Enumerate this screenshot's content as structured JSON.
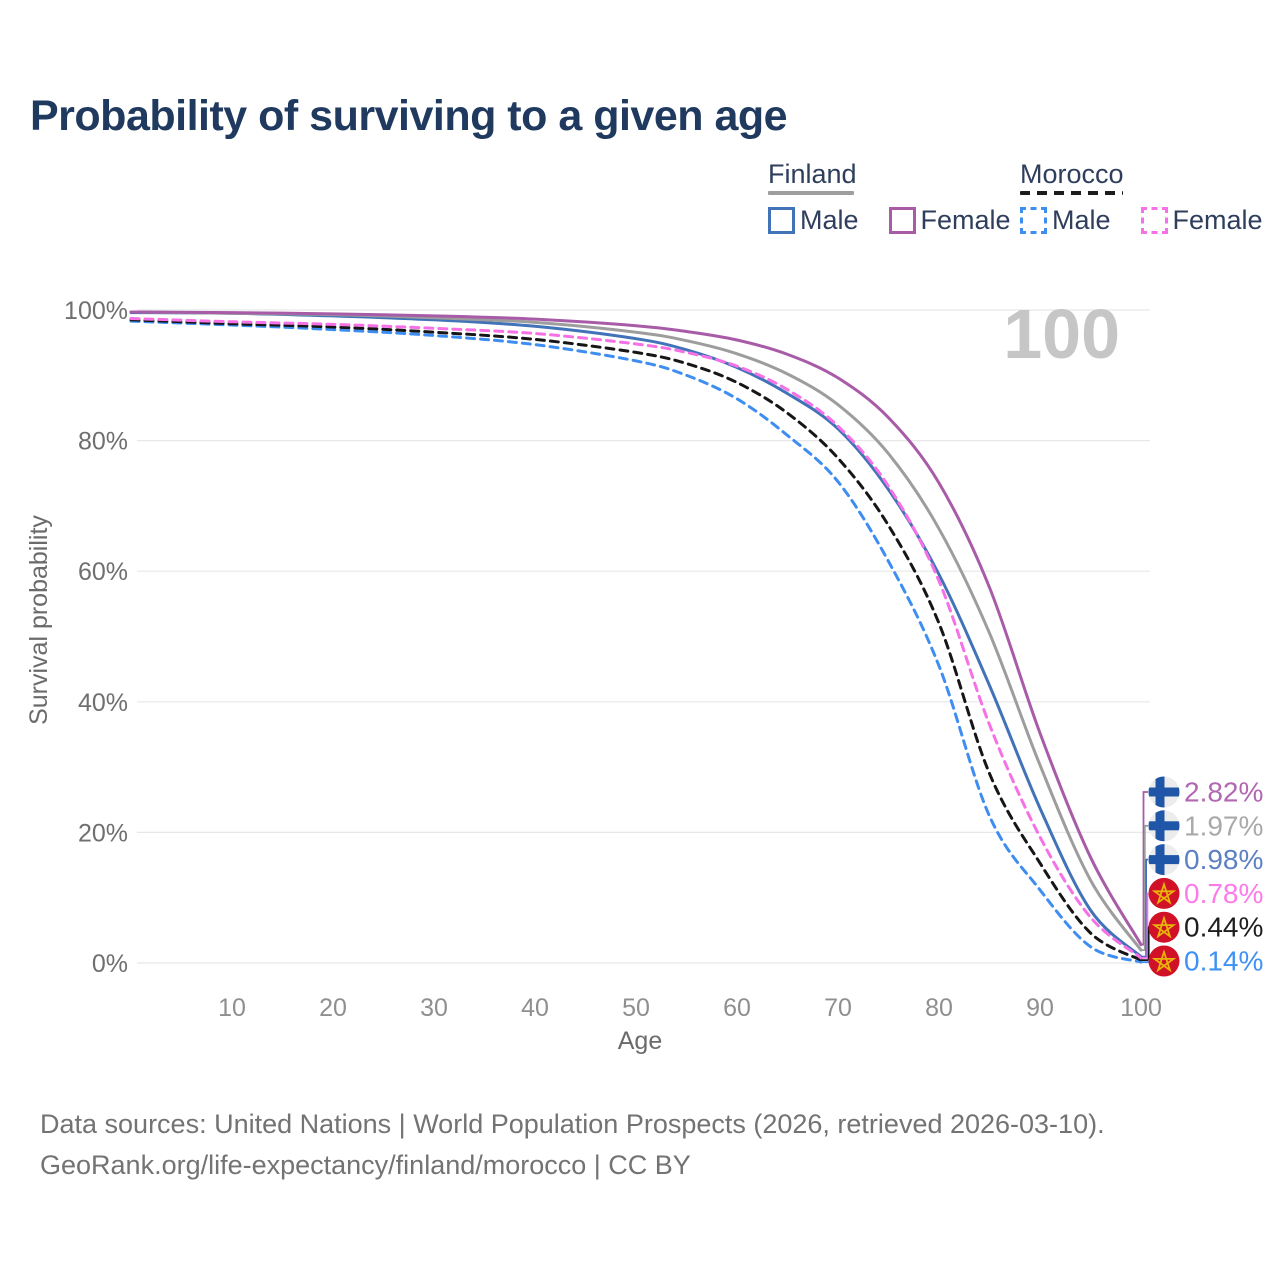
{
  "title": "Probability of surviving to a given age",
  "watermark": "100",
  "legend": {
    "groups": [
      {
        "name": "Finland",
        "style": "solid",
        "underline_color": "#9e9e9e",
        "items": [
          {
            "label": "Male",
            "color": "#4273b9"
          },
          {
            "label": "Female",
            "color": "#a85ca8"
          }
        ]
      },
      {
        "name": "Morocco",
        "style": "dashed",
        "underline_color": "#1c1c1c",
        "items": [
          {
            "label": "Male",
            "color": "#3e8ef2"
          },
          {
            "label": "Female",
            "color": "#f571e5"
          }
        ]
      }
    ]
  },
  "chart_data": {
    "type": "line",
    "title": "Probability of surviving to a given age",
    "xlabel": "Age",
    "ylabel": "Survival probability",
    "xlim": [
      0,
      108
    ],
    "ylim": [
      0,
      100
    ],
    "grid": "horizontal",
    "x_ticks": [
      10,
      20,
      30,
      40,
      50,
      60,
      70,
      80,
      90,
      100
    ],
    "y_tick_values": [
      0,
      20,
      40,
      60,
      80,
      100
    ],
    "y_tick_labels": [
      "0%",
      "20%",
      "40%",
      "60%",
      "80%",
      "100%"
    ],
    "x": [
      0,
      10,
      20,
      30,
      40,
      50,
      55,
      60,
      65,
      70,
      75,
      80,
      85,
      90,
      95,
      100
    ],
    "series": [
      {
        "id": "finland-female",
        "country": "Finland",
        "sex": "Female",
        "style": "solid",
        "color": "#a85ca8",
        "label_color": "#b167b1",
        "flag": "finland",
        "end_label": "2.82%",
        "values": [
          99.7,
          99.6,
          99.4,
          99.1,
          98.6,
          97.6,
          96.7,
          95.4,
          93.2,
          89.6,
          83.5,
          73.5,
          57.5,
          35.2,
          16.2,
          2.82
        ]
      },
      {
        "id": "finland-all",
        "country": "Finland",
        "sex": "All",
        "style": "solid",
        "color": "#9d9d9d",
        "label_color": "#a9a9a9",
        "flag": "finland",
        "end_label": "1.97%",
        "values": [
          99.7,
          99.5,
          99.3,
          98.8,
          98.1,
          96.6,
          95.3,
          93.3,
          90.2,
          85.5,
          78.0,
          66.5,
          50.5,
          30.3,
          12.7,
          1.97
        ]
      },
      {
        "id": "finland-male",
        "country": "Finland",
        "sex": "Male",
        "style": "solid",
        "color": "#4273b9",
        "label_color": "#5d80c3",
        "flag": "finland",
        "end_label": "0.98%",
        "values": [
          99.6,
          99.5,
          99.1,
          98.5,
          97.5,
          95.6,
          93.9,
          91.2,
          87.2,
          81.8,
          72.5,
          59.5,
          42.5,
          23.7,
          8.1,
          0.98
        ]
      },
      {
        "id": "morocco-female",
        "country": "Morocco",
        "sex": "Female",
        "style": "dashed",
        "color": "#f571e5",
        "label_color": "#fb7ce8",
        "flag": "morocco",
        "end_label": "0.78%",
        "values": [
          98.7,
          98.2,
          97.8,
          97.2,
          96.4,
          94.8,
          93.5,
          91.4,
          87.8,
          82.2,
          73.0,
          58.5,
          36.5,
          19.3,
          7.0,
          0.78
        ]
      },
      {
        "id": "morocco-all",
        "country": "Morocco",
        "sex": "All",
        "style": "dashed",
        "color": "#161616",
        "label_color": "#1e1e1e",
        "flag": "morocco",
        "end_label": "0.44%",
        "values": [
          98.5,
          97.9,
          97.4,
          96.6,
          95.5,
          93.5,
          91.8,
          88.9,
          84.2,
          77.3,
          67.0,
          52.0,
          29.0,
          15.3,
          4.6,
          0.44
        ]
      },
      {
        "id": "morocco-male",
        "country": "Morocco",
        "sex": "Male",
        "style": "dashed",
        "color": "#3e8ef2",
        "label_color": "#3f92f4",
        "flag": "morocco",
        "end_label": "0.14%",
        "values": [
          98.3,
          97.7,
          97.0,
          96.1,
          94.7,
          92.2,
          90.0,
          86.4,
          80.8,
          73.7,
          61.5,
          45.5,
          22.5,
          11.2,
          2.5,
          0.14
        ]
      }
    ],
    "flag_colors": {
      "finland_circle": "#ececec",
      "finland_cross": "#1f56a7",
      "morocco_circle": "#d01127",
      "morocco_star": "#e9b308"
    },
    "gridline_color": "#e8e8e8",
    "watermark_color": "#c6c6c6"
  },
  "footer": {
    "line1": "Data sources: United Nations | World Population Prospects (2026, retrieved 2026-03-10).",
    "line2": "GeoRank.org/life-expectancy/finland/morocco | CC BY"
  }
}
